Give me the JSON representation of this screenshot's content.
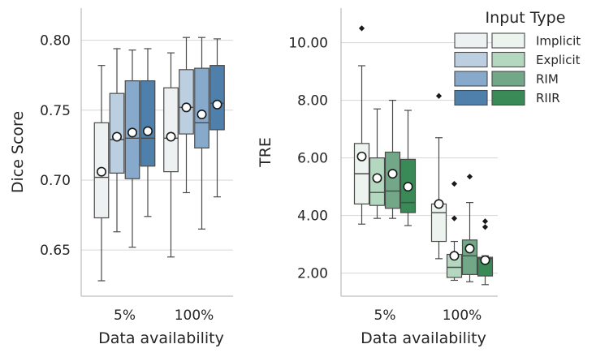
{
  "chart_data": [
    {
      "type": "box",
      "title": "",
      "xlabel": "Data availability",
      "ylabel": "Dice Score",
      "categories": [
        "5%",
        "100%"
      ],
      "ylim": [
        0.617,
        0.823
      ],
      "yticks": [
        0.65,
        0.7,
        0.75,
        0.8
      ],
      "ytick_labels": [
        "0.65",
        "0.70",
        "0.75",
        "0.80"
      ],
      "grid": true,
      "series": [
        {
          "name": "Implicit",
          "color": "#eef1f2",
          "boxes": [
            {
              "whislo": 0.628,
              "q1": 0.673,
              "med": 0.702,
              "q3": 0.741,
              "whishi": 0.782,
              "mean": 0.706,
              "fliers": []
            },
            {
              "whislo": 0.645,
              "q1": 0.706,
              "med": 0.73,
              "q3": 0.766,
              "whishi": 0.791,
              "mean": 0.731,
              "fliers": []
            }
          ]
        },
        {
          "name": "Explicit",
          "color": "#bccfe0",
          "boxes": [
            {
              "whislo": 0.663,
              "q1": 0.705,
              "med": 0.729,
              "q3": 0.762,
              "whishi": 0.794,
              "mean": 0.731,
              "fliers": []
            },
            {
              "whislo": 0.691,
              "q1": 0.733,
              "med": 0.752,
              "q3": 0.779,
              "whishi": 0.802,
              "mean": 0.752,
              "fliers": []
            }
          ]
        },
        {
          "name": "RIM",
          "color": "#87a9cb",
          "boxes": [
            {
              "whislo": 0.652,
              "q1": 0.701,
              "med": 0.73,
              "q3": 0.771,
              "whishi": 0.793,
              "mean": 0.734,
              "fliers": []
            },
            {
              "whislo": 0.665,
              "q1": 0.723,
              "med": 0.741,
              "q3": 0.78,
              "whishi": 0.802,
              "mean": 0.747,
              "fliers": []
            }
          ]
        },
        {
          "name": "RIIR",
          "color": "#4f7fab",
          "boxes": [
            {
              "whislo": 0.674,
              "q1": 0.71,
              "med": 0.73,
              "q3": 0.771,
              "whishi": 0.794,
              "mean": 0.735,
              "fliers": []
            },
            {
              "whislo": 0.688,
              "q1": 0.736,
              "med": 0.755,
              "q3": 0.782,
              "whishi": 0.801,
              "mean": 0.754,
              "fliers": []
            }
          ]
        }
      ]
    },
    {
      "type": "box",
      "title": "",
      "xlabel": "Data availability",
      "ylabel": "TRE",
      "categories": [
        "5%",
        "100%"
      ],
      "ylim": [
        1.2,
        11.2
      ],
      "yticks": [
        2,
        4,
        6,
        8,
        10
      ],
      "ytick_labels": [
        "2.00",
        "4.00",
        "6.00",
        "8.00",
        "10.00"
      ],
      "grid": true,
      "series": [
        {
          "name": "Implicit",
          "color": "#edf4ef",
          "boxes": [
            {
              "whislo": 3.7,
              "q1": 4.4,
              "med": 5.45,
              "q3": 6.5,
              "whishi": 9.2,
              "mean": 6.05,
              "fliers": [
                10.5
              ]
            },
            {
              "whislo": 2.5,
              "q1": 3.1,
              "med": 4.1,
              "q3": 4.4,
              "whishi": 6.7,
              "mean": 4.4,
              "fliers": [
                8.15
              ]
            }
          ]
        },
        {
          "name": "Explicit",
          "color": "#b4d7c0",
          "boxes": [
            {
              "whislo": 3.9,
              "q1": 4.35,
              "med": 4.8,
              "q3": 6.0,
              "whishi": 7.7,
              "mean": 5.3,
              "fliers": []
            },
            {
              "whislo": 1.75,
              "q1": 1.85,
              "med": 2.2,
              "q3": 2.65,
              "whishi": 3.1,
              "mean": 2.6,
              "fliers": [
                5.1,
                3.9
              ]
            }
          ]
        },
        {
          "name": "RIM",
          "color": "#72a887",
          "boxes": [
            {
              "whislo": 3.9,
              "q1": 4.25,
              "med": 4.85,
              "q3": 6.2,
              "whishi": 8.0,
              "mean": 5.45,
              "fliers": []
            },
            {
              "whislo": 1.7,
              "q1": 1.95,
              "med": 2.6,
              "q3": 3.15,
              "whishi": 4.45,
              "mean": 2.85,
              "fliers": [
                5.35
              ]
            }
          ]
        },
        {
          "name": "RIIR",
          "color": "#3a8a58",
          "boxes": [
            {
              "whislo": 3.65,
              "q1": 4.1,
              "med": 4.45,
              "q3": 5.95,
              "whishi": 7.65,
              "mean": 5.0,
              "fliers": []
            },
            {
              "whislo": 1.6,
              "q1": 1.9,
              "med": 2.5,
              "q3": 2.55,
              "whishi": 2.6,
              "mean": 2.45,
              "fliers": [
                3.8,
                3.6
              ]
            }
          ]
        }
      ]
    }
  ],
  "legend": {
    "title": "Input Type",
    "position": "top-right",
    "entries": [
      {
        "label": "Implicit",
        "color_left": "#eef1f2",
        "color_right": "#edf4ef"
      },
      {
        "label": "Explicit",
        "color_left": "#bccfe0",
        "color_right": "#b4d7c0"
      },
      {
        "label": "RIM",
        "color_left": "#87a9cb",
        "color_right": "#72a887"
      },
      {
        "label": "RIIR",
        "color_left": "#4f7fab",
        "color_right": "#3a8a58"
      }
    ]
  }
}
